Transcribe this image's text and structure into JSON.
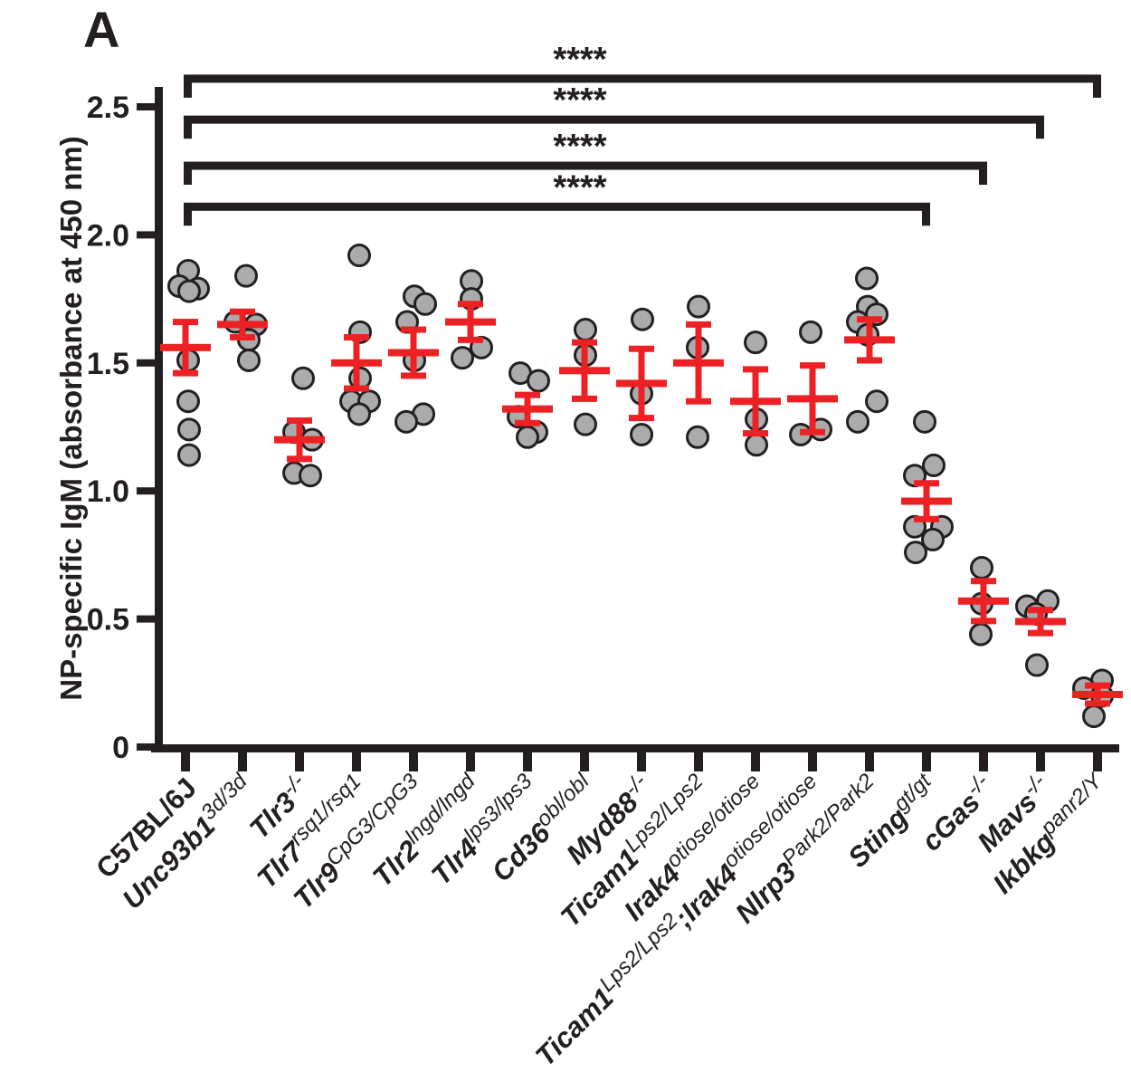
{
  "panel_label": "A",
  "colors": {
    "accent_red": "#ED2024",
    "point_fill": "#ABABAB",
    "point_stroke": "#231F20",
    "axis_black": "#231F20"
  },
  "chart_data": {
    "type": "scatter",
    "title": "",
    "xlabel": "",
    "ylabel": "NP-specific IgM (absorbance at 450 nm)",
    "ylim": [
      0,
      2.5
    ],
    "yticks": [
      "0",
      "0.5",
      "1.0",
      "1.5",
      "2.0",
      "2.5"
    ],
    "ytick_values": [
      0,
      0.5,
      1.0,
      1.5,
      2.0,
      2.5
    ],
    "error_bar_type": "mean ± SEM",
    "grid": false,
    "groups": [
      {
        "plain": "C57BL/6J",
        "segments": [
          {
            "text": "C57BL/6J",
            "sup": false,
            "italic": false
          }
        ],
        "points": [
          {
            "v": 1.86,
            "dx": 3
          },
          {
            "v": 1.8,
            "dx": -7
          },
          {
            "v": 1.79,
            "dx": 14
          },
          {
            "v": 1.78,
            "dx": 4
          },
          {
            "v": 1.51,
            "dx": 3
          },
          {
            "v": 1.35,
            "dx": 3
          },
          {
            "v": 1.24,
            "dx": 4
          },
          {
            "v": 1.14,
            "dx": 4
          }
        ],
        "mean": 1.56,
        "sem": 0.1
      },
      {
        "plain": "Unc93b1 3d/3d",
        "segments": [
          {
            "text": "Unc93b1",
            "sup": false,
            "italic": true
          },
          {
            "text": "3d/3d",
            "sup": true,
            "italic": true
          }
        ],
        "points": [
          {
            "v": 1.84,
            "dx": 4
          },
          {
            "v": 1.66,
            "dx": -8
          },
          {
            "v": 1.65,
            "dx": 15
          },
          {
            "v": 1.59,
            "dx": 7
          },
          {
            "v": 1.51,
            "dx": 7
          }
        ],
        "mean": 1.65,
        "sem": 0.05
      },
      {
        "plain": "Tlr3 -/-",
        "segments": [
          {
            "text": "Tlr3",
            "sup": false,
            "italic": true
          },
          {
            "text": "-/-",
            "sup": true,
            "italic": true
          }
        ],
        "points": [
          {
            "v": 1.44,
            "dx": 4
          },
          {
            "v": 1.23,
            "dx": -6
          },
          {
            "v": 1.2,
            "dx": 14
          },
          {
            "v": 1.07,
            "dx": -6
          },
          {
            "v": 1.06,
            "dx": 12
          }
        ],
        "mean": 1.2,
        "sem": 0.075
      },
      {
        "plain": "Tlr7 rsq1/rsq1",
        "segments": [
          {
            "text": "Tlr7",
            "sup": false,
            "italic": true
          },
          {
            "text": "rsq1/rsq1",
            "sup": true,
            "italic": true
          }
        ],
        "points": [
          {
            "v": 1.92,
            "dx": 3
          },
          {
            "v": 1.62,
            "dx": 4
          },
          {
            "v": 1.44,
            "dx": 4
          },
          {
            "v": 1.35,
            "dx": -6
          },
          {
            "v": 1.35,
            "dx": 14
          },
          {
            "v": 1.3,
            "dx": 3
          }
        ],
        "mean": 1.5,
        "sem": 0.1
      },
      {
        "plain": "Tlr9 CpG3/CpG3",
        "segments": [
          {
            "text": "Tlr9",
            "sup": false,
            "italic": true
          },
          {
            "text": "CpG3/CpG3",
            "sup": true,
            "italic": true
          }
        ],
        "points": [
          {
            "v": 1.76,
            "dx": 1
          },
          {
            "v": 1.73,
            "dx": 13
          },
          {
            "v": 1.66,
            "dx": -7
          },
          {
            "v": 1.51,
            "dx": 1
          },
          {
            "v": 1.3,
            "dx": 11
          },
          {
            "v": 1.27,
            "dx": -8
          }
        ],
        "mean": 1.54,
        "sem": 0.09
      },
      {
        "plain": "Tlr2 lngd/lngd",
        "segments": [
          {
            "text": "Tlr2",
            "sup": false,
            "italic": true
          },
          {
            "text": "lngd/lngd",
            "sup": true,
            "italic": true
          }
        ],
        "points": [
          {
            "v": 1.82,
            "dx": 1
          },
          {
            "v": 1.75,
            "dx": 1
          },
          {
            "v": 1.56,
            "dx": 12
          },
          {
            "v": 1.52,
            "dx": -9
          }
        ],
        "mean": 1.66,
        "sem": 0.07
      },
      {
        "plain": "Tlr4 lps3/lps3",
        "segments": [
          {
            "text": "Tlr4",
            "sup": false,
            "italic": true
          },
          {
            "text": "lps3/lps3",
            "sup": true,
            "italic": true
          }
        ],
        "points": [
          {
            "v": 1.46,
            "dx": -8
          },
          {
            "v": 1.43,
            "dx": 12
          },
          {
            "v": 1.29,
            "dx": -10
          },
          {
            "v": 1.23,
            "dx": 10
          },
          {
            "v": 1.21,
            "dx": 0
          }
        ],
        "mean": 1.32,
        "sem": 0.055
      },
      {
        "plain": "Cd36 obl/obl",
        "segments": [
          {
            "text": "Cd36",
            "sup": false,
            "italic": true
          },
          {
            "text": "obl/obl",
            "sup": true,
            "italic": true
          }
        ],
        "points": [
          {
            "v": 1.63,
            "dx": 1
          },
          {
            "v": 1.53,
            "dx": 1
          },
          {
            "v": 1.26,
            "dx": 1
          }
        ],
        "mean": 1.47,
        "sem": 0.11
      },
      {
        "plain": "Myd88 -/-",
        "segments": [
          {
            "text": "Myd88",
            "sup": false,
            "italic": true
          },
          {
            "text": "-/-",
            "sup": true,
            "italic": true
          }
        ],
        "points": [
          {
            "v": 1.67,
            "dx": 1
          },
          {
            "v": 1.38,
            "dx": 0
          },
          {
            "v": 1.22,
            "dx": 0
          }
        ],
        "mean": 1.42,
        "sem": 0.135
      },
      {
        "plain": "Ticam1 Lps2/Lps2",
        "segments": [
          {
            "text": "Ticam1",
            "sup": false,
            "italic": true
          },
          {
            "text": "Lps2/Lps2",
            "sup": true,
            "italic": true
          }
        ],
        "points": [
          {
            "v": 1.72,
            "dx": 0
          },
          {
            "v": 1.56,
            "dx": -1
          },
          {
            "v": 1.21,
            "dx": -1
          }
        ],
        "mean": 1.5,
        "sem": 0.15
      },
      {
        "plain": "Irak4 otiose/otiose",
        "segments": [
          {
            "text": "Irak4",
            "sup": false,
            "italic": true
          },
          {
            "text": "otiose/otiose",
            "sup": true,
            "italic": true
          }
        ],
        "points": [
          {
            "v": 1.58,
            "dx": 0
          },
          {
            "v": 1.28,
            "dx": 1
          },
          {
            "v": 1.18,
            "dx": 1
          }
        ],
        "mean": 1.35,
        "sem": 0.125
      },
      {
        "plain": "Ticam1 Lps2/Lps2;Irak4 otiose/otiose",
        "segments": [
          {
            "text": "Ticam1",
            "sup": false,
            "italic": true
          },
          {
            "text": "Lps2/Lps2",
            "sup": true,
            "italic": true
          },
          {
            "text": ";Irak4",
            "sup": false,
            "italic": true
          },
          {
            "text": "otiose/otiose",
            "sup": true,
            "italic": true
          }
        ],
        "points": [
          {
            "v": 1.62,
            "dx": -2
          },
          {
            "v": 1.24,
            "dx": 9
          },
          {
            "v": 1.22,
            "dx": -13
          }
        ],
        "mean": 1.36,
        "sem": 0.13
      },
      {
        "plain": "Nlrp3 Park2/Park2",
        "segments": [
          {
            "text": "Nlrp3",
            "sup": false,
            "italic": true
          },
          {
            "text": "Park2/Park2",
            "sup": true,
            "italic": true
          }
        ],
        "points": [
          {
            "v": 1.83,
            "dx": -3
          },
          {
            "v": 1.72,
            "dx": -2
          },
          {
            "v": 1.69,
            "dx": 8
          },
          {
            "v": 1.66,
            "dx": -13
          },
          {
            "v": 1.61,
            "dx": -2
          },
          {
            "v": 1.35,
            "dx": 8
          },
          {
            "v": 1.27,
            "dx": -13
          }
        ],
        "mean": 1.59,
        "sem": 0.08
      },
      {
        "plain": "Sting gt/gt",
        "segments": [
          {
            "text": "Sting",
            "sup": false,
            "italic": true
          },
          {
            "text": "gt/gt",
            "sup": true,
            "italic": true
          }
        ],
        "points": [
          {
            "v": 1.27,
            "dx": -2
          },
          {
            "v": 1.1,
            "dx": 8
          },
          {
            "v": 1.06,
            "dx": -13
          },
          {
            "v": 0.86,
            "dx": -13
          },
          {
            "v": 0.86,
            "dx": 17
          },
          {
            "v": 0.81,
            "dx": 7
          },
          {
            "v": 0.76,
            "dx": -12
          }
        ],
        "mean": 0.96,
        "sem": 0.07
      },
      {
        "plain": "cGas -/-",
        "segments": [
          {
            "text": "cGas",
            "sup": false,
            "italic": true
          },
          {
            "text": "-/-",
            "sup": true,
            "italic": true
          }
        ],
        "points": [
          {
            "v": 0.7,
            "dx": -2
          },
          {
            "v": 0.56,
            "dx": -2
          },
          {
            "v": 0.44,
            "dx": -3
          }
        ],
        "mean": 0.57,
        "sem": 0.078
      },
      {
        "plain": "Mavs -/-",
        "segments": [
          {
            "text": "Mavs",
            "sup": false,
            "italic": true
          },
          {
            "text": "-/-",
            "sup": true,
            "italic": true
          }
        ],
        "points": [
          {
            "v": 0.57,
            "dx": 8
          },
          {
            "v": 0.55,
            "dx": -15
          },
          {
            "v": 0.52,
            "dx": -5
          },
          {
            "v": 0.32,
            "dx": -4
          }
        ],
        "mean": 0.49,
        "sem": 0.045
      },
      {
        "plain": "Ikbkg panr2/Y",
        "segments": [
          {
            "text": "Ikbkg",
            "sup": false,
            "italic": true
          },
          {
            "text": "panr2/Y",
            "sup": true,
            "italic": true
          }
        ],
        "points": [
          {
            "v": 0.26,
            "dx": 5
          },
          {
            "v": 0.23,
            "dx": -15
          },
          {
            "v": 0.2,
            "dx": 5
          },
          {
            "v": 0.12,
            "dx": -4
          }
        ],
        "mean": 0.205,
        "sem": 0.035
      }
    ],
    "significance": [
      {
        "from_group": 0,
        "to_group": 16,
        "label": "****",
        "y_value": 2.61
      },
      {
        "from_group": 0,
        "to_group": 15,
        "label": "****",
        "y_value": 2.45
      },
      {
        "from_group": 0,
        "to_group": 14,
        "label": "****",
        "y_value": 2.27
      },
      {
        "from_group": 0,
        "to_group": 13,
        "label": "****",
        "y_value": 2.11
      }
    ]
  }
}
